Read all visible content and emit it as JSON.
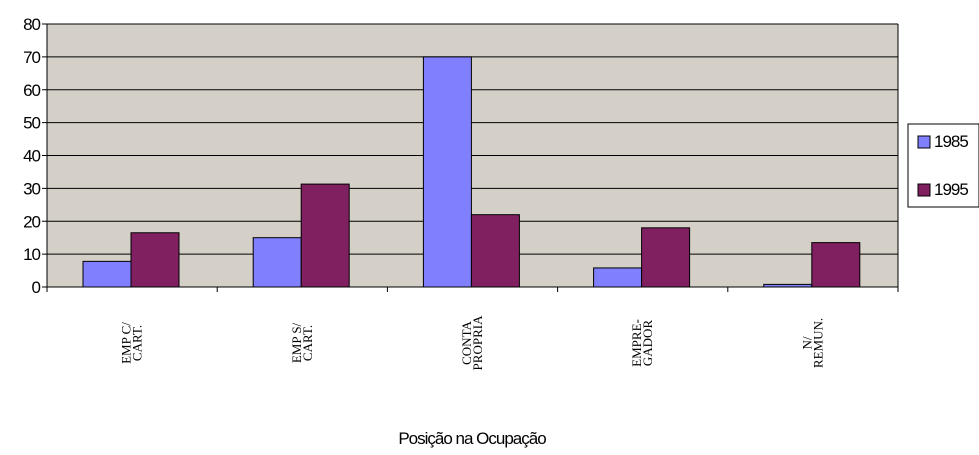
{
  "chart_data": {
    "type": "bar",
    "title": "",
    "xlabel": "Posição na Ocupação",
    "ylabel": "",
    "ylim": [
      0,
      80
    ],
    "yticks": [
      0,
      10,
      20,
      30,
      40,
      50,
      60,
      70,
      80
    ],
    "grid": true,
    "legend_position": "right",
    "categories": [
      [
        "EMP C/",
        "CART."
      ],
      [
        "EMP S/",
        "CART."
      ],
      [
        "CONTA",
        "PROPRIA"
      ],
      [
        "EMPRE-",
        "GADOR"
      ],
      [
        "N/",
        "REMUN."
      ]
    ],
    "series": [
      {
        "name": "1985",
        "color": "#8080ff",
        "values": [
          7.8,
          15,
          70,
          5.8,
          0.8
        ]
      },
      {
        "name": "1995",
        "color": "#802060",
        "values": [
          16.5,
          31.3,
          22,
          18,
          13.5
        ]
      }
    ],
    "plot_background": "#d4d0c8"
  }
}
